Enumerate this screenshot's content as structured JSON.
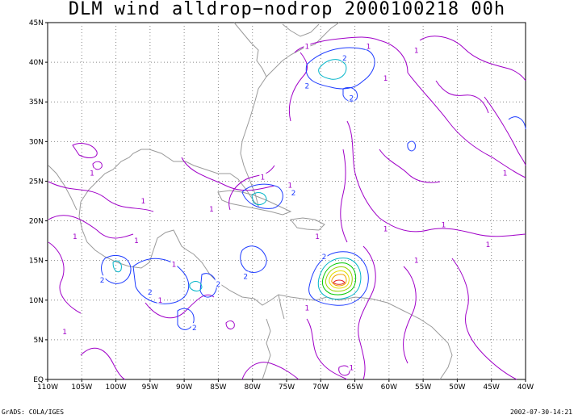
{
  "title": "DLM wind alldrop−nodrop 2000100218 00h",
  "footer_left": "GrADS: COLA/IGES",
  "footer_right": "2002-07-30-14:21",
  "axes": {
    "lat_labels": [
      "45N",
      "40N",
      "35N",
      "30N",
      "25N",
      "20N",
      "15N",
      "10N",
      "5N",
      "EQ"
    ],
    "lat_values": [
      45,
      40,
      35,
      30,
      25,
      20,
      15,
      10,
      5,
      0
    ],
    "lon_labels": [
      "110W",
      "105W",
      "100W",
      "95W",
      "90W",
      "85W",
      "80W",
      "75W",
      "70W",
      "65W",
      "60W",
      "55W",
      "50W",
      "45W",
      "40W"
    ],
    "lon_values": [
      -110,
      -105,
      -100,
      -95,
      -90,
      -85,
      -80,
      -75,
      -70,
      -65,
      -60,
      -55,
      -50,
      -45,
      -40
    ]
  },
  "contour_labels": [
    {
      "text": "1",
      "lon": -72,
      "lat": 42,
      "color": "#a000c8"
    },
    {
      "text": "1",
      "lon": -63,
      "lat": 42,
      "color": "#a000c8"
    },
    {
      "text": "1",
      "lon": -56,
      "lat": 41.5,
      "color": "#a000c8"
    },
    {
      "text": "2",
      "lon": -66.5,
      "lat": 40.5,
      "color": "#1e3cff"
    },
    {
      "text": "2",
      "lon": -72,
      "lat": 37,
      "color": "#1e3cff"
    },
    {
      "text": "2",
      "lon": -65.5,
      "lat": 35.5,
      "color": "#1e3cff"
    },
    {
      "text": "1",
      "lon": -60.5,
      "lat": 38,
      "color": "#a000c8"
    },
    {
      "text": "1",
      "lon": -43,
      "lat": 26,
      "color": "#a000c8"
    },
    {
      "text": "1",
      "lon": -103.5,
      "lat": 26,
      "color": "#a000c8"
    },
    {
      "text": "1",
      "lon": -96,
      "lat": 22.5,
      "color": "#a000c8"
    },
    {
      "text": "1",
      "lon": -86,
      "lat": 21.5,
      "color": "#a000c8"
    },
    {
      "text": "2",
      "lon": -74,
      "lat": 23.5,
      "color": "#1e3cff"
    },
    {
      "text": "1",
      "lon": -78.5,
      "lat": 25.5,
      "color": "#a000c8"
    },
    {
      "text": "1",
      "lon": -74.5,
      "lat": 24.5,
      "color": "#a000c8"
    },
    {
      "text": "1",
      "lon": -106,
      "lat": 18,
      "color": "#a000c8"
    },
    {
      "text": "1",
      "lon": -97,
      "lat": 17.5,
      "color": "#a000c8"
    },
    {
      "text": "1",
      "lon": -70.5,
      "lat": 18,
      "color": "#a000c8"
    },
    {
      "text": "1",
      "lon": -60.5,
      "lat": 19,
      "color": "#a000c8"
    },
    {
      "text": "1",
      "lon": -56,
      "lat": 15,
      "color": "#a000c8"
    },
    {
      "text": "1",
      "lon": -52,
      "lat": 19.5,
      "color": "#a000c8"
    },
    {
      "text": "1",
      "lon": -45.5,
      "lat": 17,
      "color": "#a000c8"
    },
    {
      "text": "2",
      "lon": -69.5,
      "lat": 15.5,
      "color": "#1e3cff"
    },
    {
      "text": "2",
      "lon": -102,
      "lat": 12.5,
      "color": "#1e3cff"
    },
    {
      "text": "2",
      "lon": -81,
      "lat": 13,
      "color": "#1e3cff"
    },
    {
      "text": "2",
      "lon": -85,
      "lat": 12,
      "color": "#1e3cff"
    },
    {
      "text": "2",
      "lon": -95,
      "lat": 11,
      "color": "#1e3cff"
    },
    {
      "text": "2",
      "lon": -88.5,
      "lat": 6.5,
      "color": "#1e3cff"
    },
    {
      "text": "1",
      "lon": -91.5,
      "lat": 14.5,
      "color": "#a000c8"
    },
    {
      "text": "1",
      "lon": -107.5,
      "lat": 6,
      "color": "#a000c8"
    },
    {
      "text": "1",
      "lon": -93.5,
      "lat": 10,
      "color": "#a000c8"
    },
    {
      "text": "1",
      "lon": -65.5,
      "lat": 1.5,
      "color": "#a000c8"
    },
    {
      "text": "1",
      "lon": -72,
      "lat": 9,
      "color": "#a000c8"
    }
  ]
}
